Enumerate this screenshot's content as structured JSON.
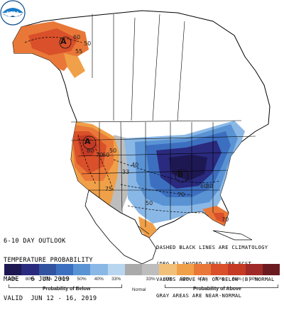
{
  "outlook": {
    "line1": "6-10 DAY OUTLOOK",
    "line2": "TEMPERATURE PROBABILITY",
    "line3": "MADE   6 JUN 2019",
    "line4": "VALID  JUN 12 - 16, 2019"
  },
  "notes": {
    "line1": "DASHED BLACK LINES ARE CLIMATOLOGY",
    "line2": "(DEG F) SHADED AREAS ARE FCST",
    "line3": "VALUES ABOVE (A) OR BELOW (B) NORMAL",
    "line4": "GRAY AREAS ARE NEAR-NORMAL"
  },
  "logo": {
    "text": "NOAA",
    "icon": "noaa-logo-icon"
  },
  "map_labels": {
    "alaska_center": "A",
    "west_center": "A",
    "east_center": "B",
    "c50_alaska": "50",
    "c55_alaska": "55",
    "c60_alaska": "60",
    "c80_west": "80",
    "c70_west": "70",
    "c60_west": "60",
    "c50_west": "50",
    "c33_central": "33",
    "c40_central": "40",
    "c50_north": "50",
    "c70_east": "70",
    "c60_east": "60",
    "c50_south": "50",
    "c80_se": "80",
    "c90_se": "80",
    "c70_fl": "70",
    "c70_texas": "70",
    "c75_texas": "75"
  },
  "legend": {
    "colors": [
      "#1d1852",
      "#2a2a7e",
      "#3153a0",
      "#3d6fc0",
      "#5a93d4",
      "#8ab8e6",
      "#b9d6f0",
      "#aaaaaa",
      "#bdbdbd",
      "#f3c07a",
      "#f0a048",
      "#e97838",
      "#d9502a",
      "#c43a24",
      "#a02a28",
      "#6b1a20"
    ],
    "percents": [
      "90%",
      "80%",
      "70%",
      "60%",
      "50%",
      "40%",
      "33%",
      "",
      "33%",
      "40%",
      "50%",
      "60%",
      "70%",
      "80%",
      "90%",
      ""
    ],
    "below_label": "Probability of Below",
    "normal_label": "Normal",
    "above_label": "Probability of Above"
  }
}
